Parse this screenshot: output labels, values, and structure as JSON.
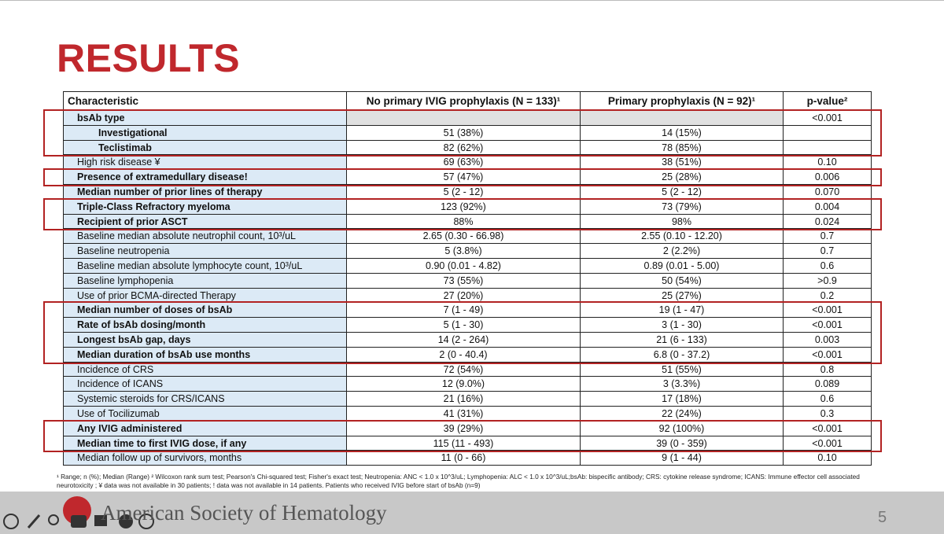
{
  "title": "RESULTS",
  "table": {
    "header": [
      "Characteristic",
      "No primary IVIG prophylaxis (N = 133)¹",
      "Primary prophylaxis (N = 92)¹",
      "p-value²"
    ],
    "rows": [
      {
        "cells": [
          "bsAb type",
          null,
          null,
          "<0.001"
        ],
        "bold": true,
        "sub": false
      },
      {
        "cells": [
          "Investigational",
          "51 (38%)",
          "14 (15%)",
          null
        ],
        "bold": true,
        "sub": true
      },
      {
        "cells": [
          "Teclistimab",
          "82 (62%)",
          "78 (85%)",
          null
        ],
        "bold": true,
        "sub": true
      },
      {
        "cells": [
          "High risk disease ¥",
          "69 (63%)",
          "38 (51%)",
          "0.10"
        ],
        "bold": false,
        "sub": false
      },
      {
        "cells": [
          "Presence of extramedullary diseaseǃ",
          "57 (47%)",
          "25 (28%)",
          "0.006"
        ],
        "bold": true,
        "sub": false
      },
      {
        "cells": [
          "Median number of prior lines of therapy",
          "5 (2 - 12)",
          "5 (2 - 12)",
          "0.070"
        ],
        "bold": true,
        "sub": false
      },
      {
        "cells": [
          "Triple-Class Refractory myeloma",
          "123 (92%)",
          "73 (79%)",
          "0.004"
        ],
        "bold": true,
        "sub": false
      },
      {
        "cells": [
          "Recipient of prior ASCT",
          "88%",
          "98%",
          "0.024"
        ],
        "bold": true,
        "sub": false
      },
      {
        "cells": [
          "Baseline median absolute neutrophil count, 10³/uL",
          "2.65 (0.30 - 66.98)",
          "2.55 (0.10 - 12.20)",
          "0.7"
        ],
        "bold": false,
        "sub": false
      },
      {
        "cells": [
          "Baseline neutropenia",
          "5 (3.8%)",
          "2 (2.2%)",
          "0.7"
        ],
        "bold": false,
        "sub": false
      },
      {
        "cells": [
          "Baseline median absolute lymphocyte count, 10³/uL",
          "0.90 (0.01 - 4.82)",
          "0.89 (0.01 - 5.00)",
          "0.6"
        ],
        "bold": false,
        "sub": false
      },
      {
        "cells": [
          "Baseline lymphopenia",
          "73 (55%)",
          "50 (54%)",
          ">0.9"
        ],
        "bold": false,
        "sub": false
      },
      {
        "cells": [
          "Use of prior BCMA-directed Therapy",
          "27 (20%)",
          "25 (27%)",
          "0.2"
        ],
        "bold": false,
        "sub": false
      },
      {
        "cells": [
          "Median number of doses of bsAb",
          "7 (1 - 49)",
          "19 (1 - 47)",
          "<0.001"
        ],
        "bold": true,
        "sub": false
      },
      {
        "cells": [
          "Rate of bsAb dosing/month",
          "5 (1 - 30)",
          "3 (1 - 30)",
          "<0.001"
        ],
        "bold": true,
        "sub": false
      },
      {
        "cells": [
          "Longest bsAb gap, days",
          "14 (2 - 264)",
          "21 (6 - 133)",
          "0.003"
        ],
        "bold": true,
        "sub": false
      },
      {
        "cells": [
          "Median duration of bsAb use months",
          "2 (0 - 40.4)",
          "6.8 (0 - 37.2)",
          "<0.001"
        ],
        "bold": true,
        "sub": false
      },
      {
        "cells": [
          "Incidence of CRS",
          "72 (54%)",
          "51 (55%)",
          "0.8"
        ],
        "bold": false,
        "sub": false
      },
      {
        "cells": [
          "Incidence of ICANS",
          "12 (9.0%)",
          "3 (3.3%)",
          "0.089"
        ],
        "bold": false,
        "sub": false
      },
      {
        "cells": [
          "Systemic steroids for CRS/ICANS",
          "21 (16%)",
          "17 (18%)",
          "0.6"
        ],
        "bold": false,
        "sub": false
      },
      {
        "cells": [
          "Use of Tocilizumab",
          "41 (31%)",
          "22 (24%)",
          "0.3"
        ],
        "bold": false,
        "sub": false
      },
      {
        "cells": [
          "Any IVIG administered",
          "39 (29%)",
          "92 (100%)",
          "<0.001"
        ],
        "bold": true,
        "sub": false
      },
      {
        "cells": [
          "Median time to first IVIG dose, if any",
          "115 (11 - 493)",
          "39 (0 - 359)",
          "<0.001"
        ],
        "bold": true,
        "sub": false
      },
      {
        "cells": [
          "Median follow up of survivors, months",
          "11 (0 - 66)",
          "9 (1 - 44)",
          "0.10"
        ],
        "bold": false,
        "sub": false
      }
    ]
  },
  "footnote": "¹ Range; n (%); Median (Range) ² Wilcoxon rank sum test; Pearson's Chi-squared test; Fisher's exact test; Neutropenia: ANC < 1.0 x 10^3/uL; Lymphopenia: ALC < 1.0 x 10^3/uL;bsAb: bispecific antibody; CRS: cytokine release syndrome; ICANS: Immune effector cell associated neurotoxicity ; ¥ data was not available in 30 patients; ǃ data was not available in 14 patients. Patients who received IVIG before start of bsAb (n=9)",
  "footer": {
    "organization": "American Society of Hematology",
    "page": "5"
  }
}
